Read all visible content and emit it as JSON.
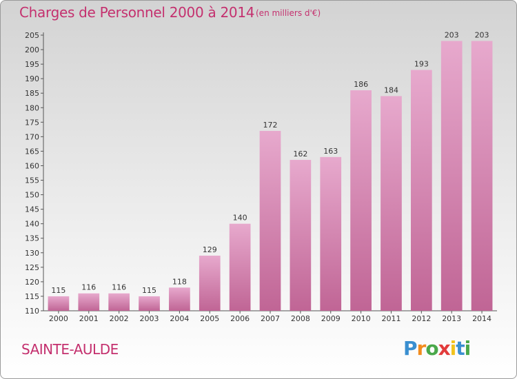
{
  "header": {
    "title": "Charges de Personnel 2000 à 2014",
    "unit": "(en milliers d'€)"
  },
  "footer": {
    "commune": "SAINTE-AULDE",
    "logo_letters": [
      {
        "char": "P",
        "color": "#3a8fd0"
      },
      {
        "char": "r",
        "color": "#f28c1e"
      },
      {
        "char": "o",
        "color": "#4aa84a"
      },
      {
        "char": "x",
        "color": "#e23b3b"
      },
      {
        "char": "i",
        "color": "#f2c31e"
      },
      {
        "char": "t",
        "color": "#3a8fd0"
      },
      {
        "char": "i",
        "color": "#4aa84a"
      }
    ]
  },
  "colors": {
    "bar_light": "#e7a9cd",
    "bar_dark": "#c06595",
    "accent": "#c4306e"
  },
  "chart_data": {
    "type": "bar",
    "title": "Charges de Personnel 2000 à 2014",
    "subtitle": "(en milliers d'€)",
    "xlabel": "",
    "ylabel": "",
    "categories": [
      "2000",
      "2001",
      "2002",
      "2003",
      "2004",
      "2005",
      "2006",
      "2007",
      "2008",
      "2009",
      "2010",
      "2011",
      "2012",
      "2013",
      "2014"
    ],
    "values": [
      115,
      116,
      116,
      115,
      118,
      129,
      140,
      172,
      162,
      163,
      186,
      184,
      193,
      203,
      203
    ],
    "ylim": [
      110,
      205
    ],
    "yticks": [
      110,
      115,
      120,
      125,
      130,
      135,
      140,
      145,
      150,
      155,
      160,
      165,
      170,
      175,
      180,
      185,
      190,
      195,
      200,
      205
    ],
    "grid": false,
    "legend": "none"
  }
}
